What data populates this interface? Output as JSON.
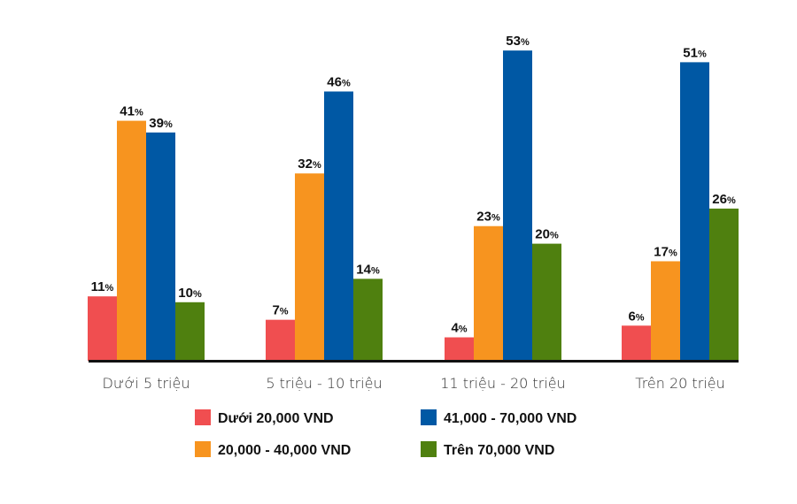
{
  "chart_data": {
    "type": "bar",
    "categories": [
      "Dưới 5 triệu",
      "5 triệu - 10 triệu",
      "11 triệu - 20 triệu",
      "Trên 20 triệu"
    ],
    "series": [
      {
        "name": "Dưới 20,000 VND",
        "color": "#f04e50",
        "values": [
          11,
          7,
          4,
          6
        ]
      },
      {
        "name": "20,000 - 40,000 VND",
        "color": "#f7941f",
        "values": [
          41,
          32,
          23,
          17
        ]
      },
      {
        "name": "41,000 - 70,000 VND",
        "color": "#0058a4",
        "values": [
          39,
          46,
          53,
          51
        ]
      },
      {
        "name": "Trên 70,000 VND",
        "color": "#4f800f",
        "values": [
          10,
          14,
          20,
          26
        ]
      }
    ],
    "value_suffix": "%",
    "ylim": [
      0,
      55
    ],
    "grid": false,
    "legend_position": "bottom"
  }
}
